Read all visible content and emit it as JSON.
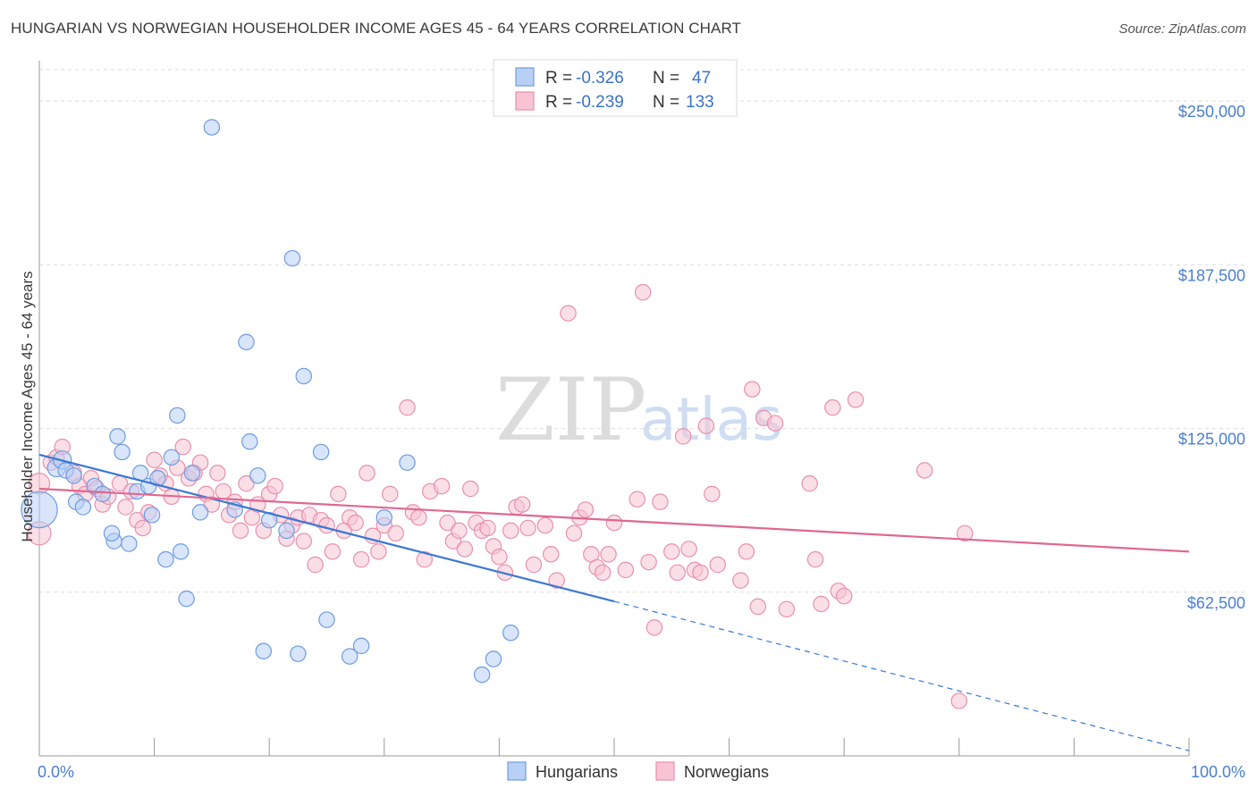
{
  "title": "HUNGARIAN VS NORWEGIAN HOUSEHOLDER INCOME AGES 45 - 64 YEARS CORRELATION CHART",
  "source": "Source: ZipAtlas.com",
  "watermark": {
    "zip": "ZIP",
    "atlas": "atlas"
  },
  "colors": {
    "hungarian_fill": "#b8d0f5",
    "hungarian_stroke": "#6d9ce0",
    "hungarian_line": "#3a78d4",
    "norwegian_fill": "#f8c4d4",
    "norwegian_stroke": "#e890ad",
    "norwegian_line": "#e06890",
    "grid": "#dddddd",
    "axis_text": "#4a7fd0"
  },
  "legend": {
    "rows": [
      {
        "r_label": "R =",
        "r_value": "-0.326",
        "n_label": "N =",
        "n_value": "47"
      },
      {
        "r_label": "R =",
        "r_value": "-0.239",
        "n_label": "N =",
        "n_value": "133"
      }
    ]
  },
  "bottom_legend": [
    "Hungarians",
    "Norwegians"
  ],
  "chart_data": {
    "type": "scatter",
    "xlabel": "",
    "ylabel": "Householder Income Ages 45 - 64 years",
    "x_tick_labels": [
      "0.0%",
      "100.0%"
    ],
    "y_tick_labels": [
      "$250,000",
      "$187,500",
      "$125,000",
      "$62,500"
    ],
    "xlim": [
      0,
      100
    ],
    "ylim": [
      0,
      262000
    ],
    "y_ticks": [
      62500,
      125000,
      187500,
      250000
    ],
    "grid": true,
    "legend_position": "top-center",
    "series": [
      {
        "name": "Hungarians",
        "trend": {
          "x0": 0,
          "y0": 115000,
          "x1": 50,
          "y1": 59000,
          "dashed_to_x": 100,
          "dashed_to_y": 2000
        },
        "points": [
          [
            0,
            94000,
            28
          ],
          [
            1.5,
            110000,
            14
          ],
          [
            2,
            113000,
            14
          ],
          [
            2.3,
            109000,
            12
          ],
          [
            3,
            107000,
            12
          ],
          [
            3.2,
            97000,
            12
          ],
          [
            3.8,
            95000,
            12
          ],
          [
            4.8,
            103000,
            12
          ],
          [
            5.5,
            100000,
            12
          ],
          [
            6.5,
            82000,
            12
          ],
          [
            6.3,
            85000,
            12
          ],
          [
            6.8,
            122000,
            12
          ],
          [
            7.2,
            116000,
            12
          ],
          [
            7.8,
            81000,
            12
          ],
          [
            8.5,
            101000,
            12
          ],
          [
            8.8,
            108000,
            12
          ],
          [
            9.5,
            103000,
            12
          ],
          [
            9.8,
            92000,
            12
          ],
          [
            10.3,
            106000,
            12
          ],
          [
            11,
            75000,
            12
          ],
          [
            11.5,
            114000,
            12
          ],
          [
            12,
            130000,
            12
          ],
          [
            12.3,
            78000,
            12
          ],
          [
            12.8,
            60000,
            12
          ],
          [
            13.3,
            108000,
            12
          ],
          [
            14,
            93000,
            12
          ],
          [
            15,
            240000,
            12
          ],
          [
            17,
            94000,
            12
          ],
          [
            18,
            158000,
            12
          ],
          [
            18.3,
            120000,
            12
          ],
          [
            19,
            107000,
            12
          ],
          [
            19.5,
            40000,
            12
          ],
          [
            20,
            90000,
            12
          ],
          [
            21.5,
            86000,
            12
          ],
          [
            22,
            190000,
            12
          ],
          [
            22.5,
            39000,
            12
          ],
          [
            23,
            145000,
            12
          ],
          [
            24.5,
            116000,
            12
          ],
          [
            25,
            52000,
            12
          ],
          [
            27,
            38000,
            12
          ],
          [
            28,
            42000,
            12
          ],
          [
            30,
            91000,
            12
          ],
          [
            32,
            112000,
            12
          ],
          [
            38.5,
            31000,
            12
          ],
          [
            39.5,
            37000,
            12
          ],
          [
            41,
            47000,
            12
          ]
        ]
      },
      {
        "name": "Norwegians",
        "trend": {
          "x0": 0,
          "y0": 102000,
          "x1": 100,
          "y1": 78000
        },
        "points": [
          [
            0,
            104000,
            16
          ],
          [
            0,
            85000,
            18
          ],
          [
            1,
            112000,
            12
          ],
          [
            1.5,
            114000,
            12
          ],
          [
            2,
            118000,
            12
          ],
          [
            3,
            108000,
            12
          ],
          [
            3.5,
            103000,
            12
          ],
          [
            4,
            100000,
            12
          ],
          [
            4.5,
            106000,
            12
          ],
          [
            5,
            102000,
            12
          ],
          [
            5.5,
            96000,
            12
          ],
          [
            6,
            99000,
            12
          ],
          [
            7,
            104000,
            12
          ],
          [
            7.5,
            95000,
            12
          ],
          [
            8,
            101000,
            12
          ],
          [
            8.5,
            90000,
            12
          ],
          [
            9,
            87000,
            12
          ],
          [
            9.5,
            93000,
            12
          ],
          [
            10,
            113000,
            12
          ],
          [
            10.5,
            107000,
            12
          ],
          [
            11,
            104000,
            12
          ],
          [
            11.5,
            99000,
            12
          ],
          [
            12,
            110000,
            12
          ],
          [
            12.5,
            118000,
            12
          ],
          [
            13,
            106000,
            12
          ],
          [
            13.5,
            108000,
            12
          ],
          [
            14,
            112000,
            12
          ],
          [
            14.5,
            100000,
            12
          ],
          [
            15,
            96000,
            12
          ],
          [
            15.5,
            108000,
            12
          ],
          [
            16,
            101000,
            12
          ],
          [
            16.5,
            92000,
            12
          ],
          [
            17,
            97000,
            12
          ],
          [
            17.5,
            86000,
            12
          ],
          [
            18,
            104000,
            12
          ],
          [
            18.5,
            91000,
            12
          ],
          [
            19,
            96000,
            12
          ],
          [
            19.5,
            86000,
            12
          ],
          [
            20,
            100000,
            12
          ],
          [
            20.5,
            103000,
            12
          ],
          [
            21,
            92000,
            12
          ],
          [
            21.5,
            83000,
            12
          ],
          [
            22,
            88000,
            12
          ],
          [
            22.5,
            91000,
            12
          ],
          [
            23,
            82000,
            12
          ],
          [
            23.5,
            92000,
            12
          ],
          [
            24,
            73000,
            12
          ],
          [
            24.5,
            90000,
            12
          ],
          [
            25,
            88000,
            12
          ],
          [
            25.5,
            78000,
            12
          ],
          [
            26,
            100000,
            12
          ],
          [
            26.5,
            86000,
            12
          ],
          [
            27,
            91000,
            12
          ],
          [
            27.5,
            89000,
            12
          ],
          [
            28,
            75000,
            12
          ],
          [
            28.5,
            108000,
            12
          ],
          [
            29,
            84000,
            12
          ],
          [
            29.5,
            78000,
            12
          ],
          [
            30,
            88000,
            12
          ],
          [
            30.5,
            100000,
            12
          ],
          [
            31,
            85000,
            12
          ],
          [
            32,
            133000,
            12
          ],
          [
            32.5,
            93000,
            12
          ],
          [
            33,
            91000,
            12
          ],
          [
            33.5,
            75000,
            12
          ],
          [
            34,
            101000,
            12
          ],
          [
            35,
            103000,
            12
          ],
          [
            35.5,
            89000,
            12
          ],
          [
            36,
            82000,
            12
          ],
          [
            36.5,
            86000,
            12
          ],
          [
            37,
            79000,
            12
          ],
          [
            37.5,
            102000,
            12
          ],
          [
            38,
            89000,
            12
          ],
          [
            38.5,
            86000,
            12
          ],
          [
            39,
            87000,
            12
          ],
          [
            39.5,
            80000,
            12
          ],
          [
            40,
            76000,
            12
          ],
          [
            40.5,
            70000,
            12
          ],
          [
            41,
            86000,
            12
          ],
          [
            41.5,
            95000,
            12
          ],
          [
            42,
            96000,
            12
          ],
          [
            42.5,
            87000,
            12
          ],
          [
            43,
            73000,
            12
          ],
          [
            44,
            88000,
            12
          ],
          [
            44.5,
            77000,
            12
          ],
          [
            45,
            67000,
            12
          ],
          [
            46,
            169000,
            12
          ],
          [
            46.5,
            85000,
            12
          ],
          [
            47,
            91000,
            12
          ],
          [
            47.5,
            94000,
            12
          ],
          [
            48,
            77000,
            12
          ],
          [
            48.5,
            72000,
            12
          ],
          [
            49,
            70000,
            12
          ],
          [
            49.5,
            77000,
            12
          ],
          [
            50,
            89000,
            12
          ],
          [
            51,
            71000,
            12
          ],
          [
            52,
            98000,
            12
          ],
          [
            52.5,
            177000,
            12
          ],
          [
            53,
            74000,
            12
          ],
          [
            53.5,
            49000,
            12
          ],
          [
            54,
            97000,
            12
          ],
          [
            55,
            78000,
            12
          ],
          [
            55.5,
            70000,
            12
          ],
          [
            56,
            122000,
            12
          ],
          [
            56.5,
            79000,
            12
          ],
          [
            57,
            71000,
            12
          ],
          [
            57.5,
            70000,
            12
          ],
          [
            58,
            126000,
            12
          ],
          [
            58.5,
            100000,
            12
          ],
          [
            59,
            73000,
            12
          ],
          [
            61,
            67000,
            12
          ],
          [
            61.5,
            78000,
            12
          ],
          [
            62,
            140000,
            12
          ],
          [
            62.5,
            57000,
            12
          ],
          [
            63,
            129000,
            12
          ],
          [
            64,
            127000,
            12
          ],
          [
            65,
            56000,
            12
          ],
          [
            67,
            104000,
            12
          ],
          [
            67.5,
            75000,
            12
          ],
          [
            68,
            58000,
            12
          ],
          [
            69,
            133000,
            12
          ],
          [
            69.5,
            63000,
            12
          ],
          [
            70,
            61000,
            12
          ],
          [
            71,
            136000,
            12
          ],
          [
            77,
            109000,
            12
          ],
          [
            80,
            21000,
            12
          ],
          [
            80.5,
            85000,
            12
          ]
        ]
      }
    ]
  }
}
